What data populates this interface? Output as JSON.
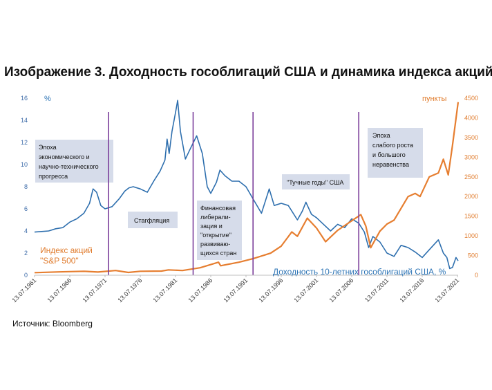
{
  "title": "Изображение 3. Доходность гособлигаций США и динамика индекса акций",
  "source": "Источник: Bloomberg",
  "colors": {
    "yield": "#2e6fae",
    "index": "#e67e30",
    "era_line": "#7a3d9a",
    "box": "#d6dcea"
  },
  "chart_data": {
    "type": "line",
    "left_axis": {
      "unit_label": "%",
      "ylim": [
        0,
        16
      ],
      "ticks": [
        "0",
        "2",
        "4",
        "6",
        "8",
        "10",
        "12",
        "14",
        "16"
      ]
    },
    "right_axis": {
      "unit_label": "пункты",
      "ylim": [
        0,
        4500
      ],
      "ticks": [
        "0",
        "500",
        "1000",
        "1500",
        "2000",
        "2500",
        "3000",
        "3500",
        "4000",
        "4500"
      ]
    },
    "x_ticks": [
      "13.07.1961",
      "13.07.1966",
      "13.07.1971",
      "13.07.1976",
      "13.07.1981",
      "13.07.1986",
      "13.07.1991",
      "13.07.1996",
      "13.07.2001",
      "13.07.2006",
      "13.07.2011",
      "13.07.2016",
      "13.07.2021"
    ],
    "xlim": [
      1961.5,
      2021.6
    ],
    "series": [
      {
        "name": "Доходность 10-летних гособлигаций США, %",
        "axis": "left",
        "x": [
          1961.5,
          1962.5,
          1963.5,
          1964.5,
          1965.5,
          1966.5,
          1967.5,
          1968.5,
          1969.3,
          1969.8,
          1970.3,
          1970.9,
          1971.5,
          1972.5,
          1973.5,
          1974.3,
          1974.9,
          1975.5,
          1976.5,
          1977.5,
          1978.5,
          1979.3,
          1980.0,
          1980.3,
          1980.6,
          1981.0,
          1981.5,
          1981.8,
          1982.2,
          1982.9,
          1983.5,
          1984.5,
          1985.3,
          1986.0,
          1986.5,
          1987.3,
          1987.8,
          1988.5,
          1989.5,
          1990.5,
          1991.5,
          1992.5,
          1993.7,
          1994.8,
          1995.5,
          1996.5,
          1997.5,
          1998.8,
          1999.5,
          2000.0,
          2000.8,
          2001.5,
          2002.5,
          2003.5,
          2004.5,
          2005.5,
          2006.5,
          2007.5,
          2008.3,
          2008.9,
          2009.5,
          2010.5,
          2011.5,
          2012.5,
          2013.5,
          2014.5,
          2015.5,
          2016.5,
          2017.5,
          2018.8,
          2019.5,
          2020.0,
          2020.4,
          2020.8,
          2021.3,
          2021.6
        ],
        "values": [
          3.9,
          3.95,
          4.0,
          4.2,
          4.3,
          4.8,
          5.1,
          5.6,
          6.5,
          7.8,
          7.5,
          6.3,
          6.0,
          6.2,
          6.9,
          7.6,
          7.9,
          8.0,
          7.8,
          7.5,
          8.6,
          9.4,
          10.4,
          12.3,
          11.0,
          13.0,
          14.7,
          15.8,
          13.0,
          10.5,
          11.3,
          12.6,
          11.0,
          8.0,
          7.4,
          8.4,
          9.5,
          9.0,
          8.5,
          8.5,
          8.0,
          6.9,
          5.6,
          7.8,
          6.3,
          6.5,
          6.3,
          5.0,
          5.8,
          6.6,
          5.5,
          5.2,
          4.6,
          4.0,
          4.6,
          4.3,
          5.1,
          4.7,
          3.9,
          2.5,
          3.5,
          3.0,
          2.0,
          1.7,
          2.7,
          2.5,
          2.1,
          1.6,
          2.3,
          3.2,
          2.0,
          1.6,
          0.6,
          0.7,
          1.6,
          1.3
        ]
      },
      {
        "name": "Индекс акций \"S&P 500\"",
        "axis": "right",
        "x": [
          1961.5,
          1965.0,
          1968.5,
          1970.5,
          1973.0,
          1974.8,
          1976.5,
          1979.5,
          1980.5,
          1982.5,
          1985.0,
          1987.6,
          1987.9,
          1990.5,
          1992.5,
          1995.0,
          1996.5,
          1998.0,
          1998.8,
          2000.2,
          2001.5,
          2002.8,
          2004.5,
          2007.8,
          2008.5,
          2009.2,
          2010.5,
          2011.5,
          2012.5,
          2013.5,
          2014.5,
          2015.5,
          2016.2,
          2017.5,
          2018.8,
          2019.5,
          2020.2,
          2020.8,
          2021.6
        ],
        "values": [
          65,
          85,
          100,
          80,
          120,
          70,
          100,
          105,
          135,
          120,
          190,
          330,
          240,
          330,
          420,
          560,
          740,
          1100,
          990,
          1450,
          1200,
          850,
          1140,
          1540,
          1250,
          700,
          1120,
          1300,
          1400,
          1700,
          2000,
          2080,
          2000,
          2500,
          2600,
          2950,
          2550,
          3300,
          4400
        ]
      }
    ],
    "vertical_lines_x": [
      1972.0,
      1984.0,
      1992.5,
      2007.5
    ],
    "era_labels": [
      "Эпоха экономического  и научно-технического прогресса",
      "Стагфляция",
      "Финансовая либерали-зация и \"открытие\" развиваю-щихся стран",
      "\"Тучные годы\" США",
      "Эпоха слабого роста и большого неравенства"
    ]
  },
  "labels": {
    "sp500_line1": "Индекс акций",
    "sp500_line2": "\"S&P 500\"",
    "yield_series": "Доходность 10-летних гособлигаций США, %"
  },
  "boxes": {
    "era1": [
      "Эпоха",
      "экономического  и",
      "научно-технического",
      "прогресса"
    ],
    "era2": [
      "Стагфляция"
    ],
    "era3": [
      "Финансовая",
      "либерали-",
      "зация и",
      "\"открытие\"",
      "развиваю-",
      "щихся стран"
    ],
    "era4": [
      "\"Тучные годы\" США"
    ],
    "era5": [
      "Эпоха",
      "слабого роста",
      "и большого",
      "неравенства"
    ]
  }
}
